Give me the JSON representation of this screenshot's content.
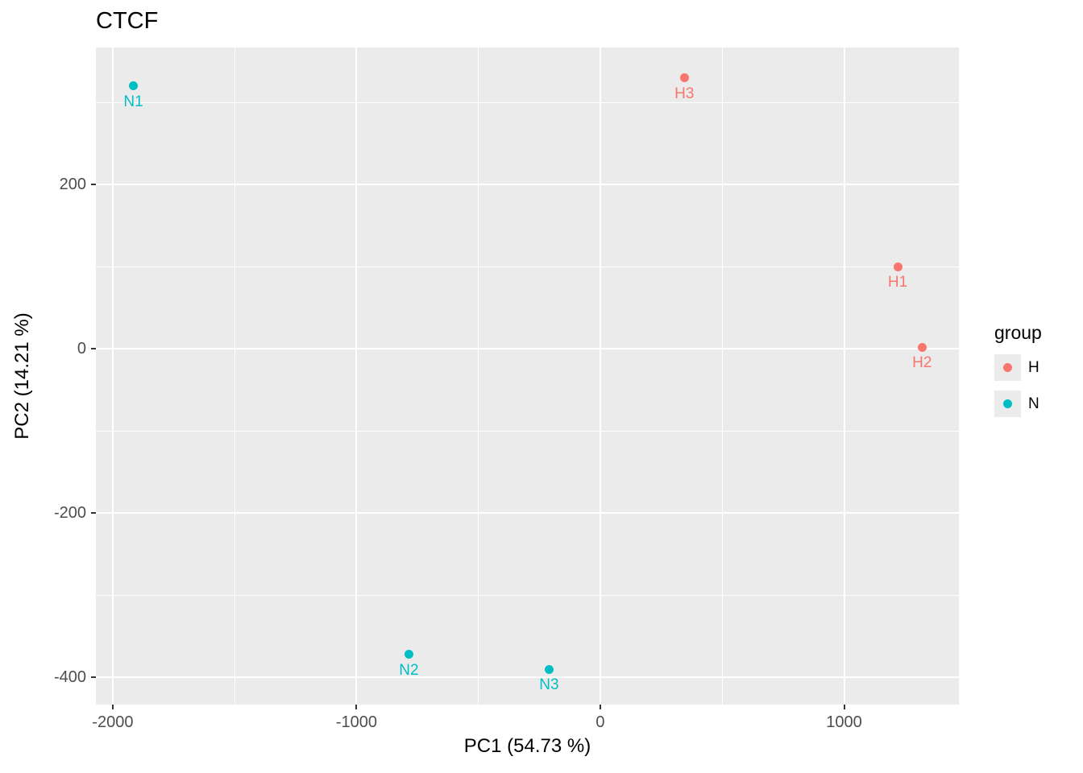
{
  "chart_data": {
    "type": "scatter",
    "title": "CTCF",
    "xlabel": "PC1 (54.73 %)",
    "ylabel": "PC2 (14.21 %)",
    "xlim": [
      -2069,
      1471
    ],
    "ylim": [
      -433,
      367
    ],
    "x_major_ticks": [
      -2000,
      -1000,
      0,
      1000
    ],
    "x_minor_ticks": [
      -1500,
      -500,
      500
    ],
    "y_major_ticks": [
      200,
      0,
      -200,
      -400
    ],
    "y_minor_ticks": [
      300,
      100,
      -100,
      -300
    ],
    "grid": true,
    "panel_bg": "#EBEBEB",
    "grid_color": "#FFFFFF",
    "tick_label_color": "#4D4D4D",
    "groups": {
      "H": "#F8766D",
      "N": "#00BFC4"
    },
    "legend": {
      "title": "group",
      "position": "right",
      "entries": [
        {
          "label": "H",
          "color": "#F8766D"
        },
        {
          "label": "N",
          "color": "#00BFC4"
        }
      ]
    },
    "points": [
      {
        "label": "N1",
        "group": "N",
        "x": -1915,
        "y": 320
      },
      {
        "label": "H3",
        "group": "H",
        "x": 345,
        "y": 330
      },
      {
        "label": "H1",
        "group": "H",
        "x": 1220,
        "y": 100
      },
      {
        "label": "H2",
        "group": "H",
        "x": 1320,
        "y": 2
      },
      {
        "label": "N2",
        "group": "N",
        "x": -785,
        "y": -372
      },
      {
        "label": "N3",
        "group": "N",
        "x": -210,
        "y": -390
      }
    ]
  }
}
